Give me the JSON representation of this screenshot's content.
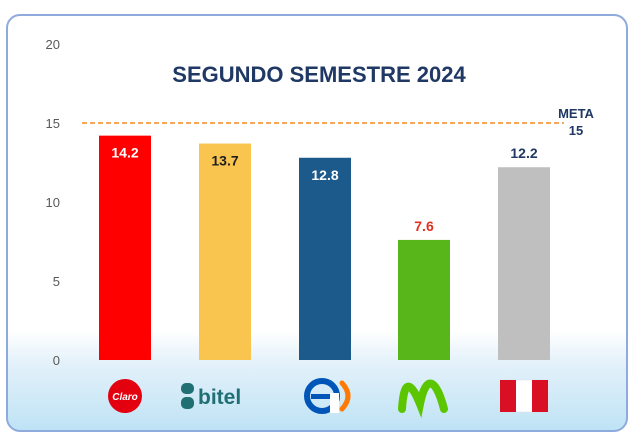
{
  "chart_data": {
    "type": "bar",
    "title": "SEGUNDO SEMESTRE 2024",
    "categories": [
      "Claro",
      "bitel",
      "Entel",
      "Movistar",
      "Perú"
    ],
    "values": [
      14.2,
      13.7,
      12.8,
      7.6,
      12.2
    ],
    "value_labels": [
      "14.2",
      "13.7",
      "12.8",
      "7.6",
      "12.2"
    ],
    "bar_colors": [
      "#ff0000",
      "#f9c54f",
      "#1b5a8a",
      "#58b51a",
      "#bfbfbf"
    ],
    "label_colors": [
      "#ffffff",
      "#1f1f1f",
      "#ffffff",
      "#e03020",
      "#1f3864"
    ],
    "label_inside": [
      true,
      true,
      true,
      false,
      false
    ],
    "ylim": [
      0,
      20
    ],
    "yticks": [
      "0",
      "5",
      "10",
      "15",
      "20"
    ],
    "ytick_values": [
      0,
      5,
      10,
      15,
      20
    ],
    "reference_line": {
      "value": 15,
      "label_line1": "META",
      "label_line2": "15",
      "color": "#f08a24"
    },
    "category_logos": [
      {
        "icon": "claro-logo-icon",
        "text": "Claro"
      },
      {
        "icon": "bitel-logo-icon",
        "text": "bitel"
      },
      {
        "icon": "entel-logo-icon",
        "text": ""
      },
      {
        "icon": "movistar-logo-icon",
        "text": ""
      },
      {
        "icon": "peru-flag-icon",
        "text": ""
      }
    ],
    "xlabel": "",
    "ylabel": "",
    "grid": false,
    "legend": "none"
  }
}
